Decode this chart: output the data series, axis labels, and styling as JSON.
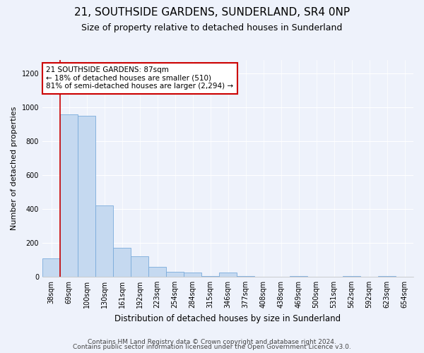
{
  "title": "21, SOUTHSIDE GARDENS, SUNDERLAND, SR4 0NP",
  "subtitle": "Size of property relative to detached houses in Sunderland",
  "xlabel": "Distribution of detached houses by size in Sunderland",
  "ylabel": "Number of detached properties",
  "categories": [
    "38sqm",
    "69sqm",
    "100sqm",
    "130sqm",
    "161sqm",
    "192sqm",
    "223sqm",
    "254sqm",
    "284sqm",
    "315sqm",
    "346sqm",
    "377sqm",
    "408sqm",
    "438sqm",
    "469sqm",
    "500sqm",
    "531sqm",
    "562sqm",
    "592sqm",
    "623sqm",
    "654sqm"
  ],
  "values": [
    110,
    960,
    950,
    420,
    170,
    120,
    60,
    28,
    25,
    5,
    25,
    5,
    0,
    0,
    5,
    0,
    0,
    5,
    0,
    5,
    0
  ],
  "bar_color": "#c5d9f0",
  "bar_edge_color": "#7aabdb",
  "annotation_line1": "21 SOUTHSIDE GARDENS: 87sqm",
  "annotation_line2": "← 18% of detached houses are smaller (510)",
  "annotation_line3": "81% of semi-detached houses are larger (2,294) →",
  "annotation_box_facecolor": "#ffffff",
  "annotation_box_edgecolor": "#cc0000",
  "vline_color": "#cc0000",
  "vline_x": 0.5,
  "ylim_max": 1280,
  "yticks": [
    0,
    200,
    400,
    600,
    800,
    1000,
    1200
  ],
  "fig_facecolor": "#eef2fb",
  "axes_facecolor": "#eef2fb",
  "grid_color": "#ffffff",
  "title_fontsize": 11,
  "subtitle_fontsize": 9,
  "tick_fontsize": 7,
  "ylabel_fontsize": 8,
  "xlabel_fontsize": 8.5,
  "annot_fontsize": 7.5,
  "footer_fontsize": 6.5,
  "footer1": "Contains HM Land Registry data © Crown copyright and database right 2024.",
  "footer2": "Contains public sector information licensed under the Open Government Licence v3.0."
}
